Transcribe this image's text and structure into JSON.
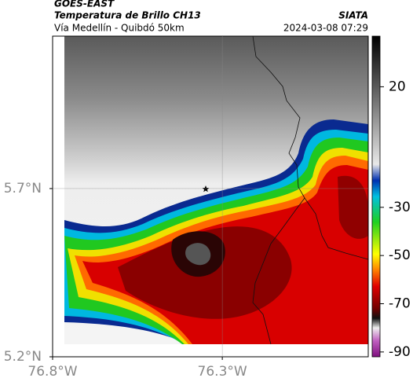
{
  "header": {
    "title": "GOES-EAST",
    "subtitle": "Temperatura de Brillo CH13",
    "source": "SIATA",
    "region": "Vía Medellín - Quibdó 50km",
    "timestamp": "2024-03-08 07:29"
  },
  "map": {
    "xlim": [
      -76.8,
      -75.87
    ],
    "ylim": [
      5.2,
      6.153
    ],
    "xticks": [
      {
        "value": -76.8,
        "label": "76.8°W"
      },
      {
        "value": -76.3,
        "label": "76.3°W"
      }
    ],
    "yticks": [
      {
        "value": 5.7,
        "label": "5.7°N"
      },
      {
        "value": 5.2,
        "label": "5.2°N"
      }
    ]
  },
  "colorbar": {
    "lim": [
      -92,
      41
    ],
    "ticks": [
      20,
      -30,
      -50,
      -70,
      -90
    ]
  }
}
